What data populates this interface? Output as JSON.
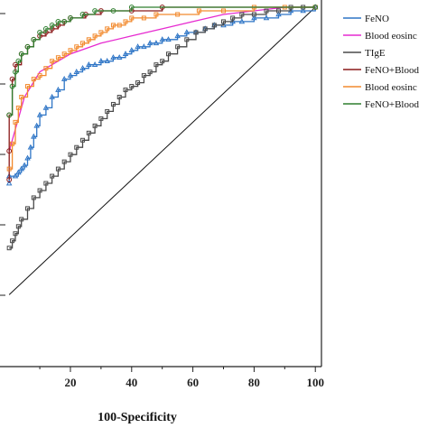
{
  "chart_data": {
    "type": "line",
    "xlabel": "100-Specificity",
    "ylabel": "",
    "xlim": [
      -3,
      102
    ],
    "ylim": [
      0,
      100
    ],
    "xticks": [
      20,
      40,
      60,
      80,
      100
    ],
    "tick_labels": [
      "20",
      "40",
      "60",
      "80",
      "100"
    ],
    "grid": false,
    "legend_position": "right",
    "series": [
      {
        "name": "FeNO",
        "color": "#2e75c6",
        "marker": "triangle",
        "points": [
          [
            0,
            51
          ],
          [
            0,
            53
          ],
          [
            2,
            53
          ],
          [
            3,
            54
          ],
          [
            4,
            55
          ],
          [
            5,
            56
          ],
          [
            6,
            58
          ],
          [
            7,
            61
          ],
          [
            8,
            64
          ],
          [
            9,
            67
          ],
          [
            10,
            70
          ],
          [
            12,
            72
          ],
          [
            14,
            75
          ],
          [
            16,
            77
          ],
          [
            18,
            80
          ],
          [
            20,
            81
          ],
          [
            22,
            82
          ],
          [
            24,
            83
          ],
          [
            26,
            84
          ],
          [
            28,
            84
          ],
          [
            30,
            85
          ],
          [
            32,
            85
          ],
          [
            34,
            86
          ],
          [
            36,
            86
          ],
          [
            38,
            87
          ],
          [
            40,
            88
          ],
          [
            42,
            89
          ],
          [
            44,
            89
          ],
          [
            46,
            90
          ],
          [
            48,
            90
          ],
          [
            50,
            91
          ],
          [
            52,
            91
          ],
          [
            55,
            92
          ],
          [
            58,
            93
          ],
          [
            61,
            93
          ],
          [
            64,
            94
          ],
          [
            67,
            95
          ],
          [
            70,
            95
          ],
          [
            73,
            96
          ],
          [
            76,
            96
          ],
          [
            80,
            97
          ],
          [
            84,
            97
          ],
          [
            88,
            98
          ],
          [
            92,
            99
          ],
          [
            96,
            99
          ],
          [
            100,
            100
          ]
        ]
      },
      {
        "name": "Blood eosinophil count",
        "color": "#e62ad0",
        "marker": "none",
        "points": [
          [
            0,
            60
          ],
          [
            5,
            75
          ],
          [
            10,
            82
          ],
          [
            20,
            87
          ],
          [
            30,
            90
          ],
          [
            40,
            92
          ],
          [
            50,
            94
          ],
          [
            60,
            96
          ],
          [
            70,
            98
          ],
          [
            80,
            99
          ],
          [
            90,
            100
          ],
          [
            100,
            100
          ]
        ]
      },
      {
        "name": "TIgE",
        "color": "#4a4a4a",
        "marker": "square",
        "points": [
          [
            0,
            33
          ],
          [
            1,
            35
          ],
          [
            2,
            37
          ],
          [
            3,
            39
          ],
          [
            4,
            41
          ],
          [
            6,
            44
          ],
          [
            8,
            47
          ],
          [
            10,
            49
          ],
          [
            12,
            51
          ],
          [
            14,
            53
          ],
          [
            16,
            55
          ],
          [
            18,
            57
          ],
          [
            20,
            59
          ],
          [
            22,
            61
          ],
          [
            24,
            63
          ],
          [
            26,
            65
          ],
          [
            28,
            67
          ],
          [
            30,
            69
          ],
          [
            32,
            71
          ],
          [
            34,
            73
          ],
          [
            36,
            75
          ],
          [
            38,
            77
          ],
          [
            40,
            78
          ],
          [
            42,
            79
          ],
          [
            44,
            81
          ],
          [
            46,
            82
          ],
          [
            48,
            84
          ],
          [
            50,
            85
          ],
          [
            52,
            87
          ],
          [
            55,
            89
          ],
          [
            58,
            91
          ],
          [
            61,
            93
          ],
          [
            64,
            94
          ],
          [
            67,
            95
          ],
          [
            70,
            96
          ],
          [
            73,
            97
          ],
          [
            76,
            98
          ],
          [
            80,
            98
          ],
          [
            84,
            99
          ],
          [
            88,
            99
          ],
          [
            92,
            100
          ],
          [
            96,
            100
          ],
          [
            100,
            100
          ]
        ]
      },
      {
        "name": "FeNO+Blood eosinophil count",
        "color": "#8b1a1a",
        "marker": "circle",
        "points": [
          [
            0,
            52
          ],
          [
            0,
            60
          ],
          [
            0,
            70
          ],
          [
            1,
            80
          ],
          [
            2,
            84
          ],
          [
            4,
            87
          ],
          [
            6,
            89
          ],
          [
            8,
            91
          ],
          [
            10,
            92
          ],
          [
            12,
            93
          ],
          [
            14,
            94
          ],
          [
            16,
            95
          ],
          [
            18,
            96
          ],
          [
            20,
            97
          ],
          [
            25,
            98
          ],
          [
            30,
            99
          ],
          [
            40,
            99
          ],
          [
            50,
            100
          ],
          [
            100,
            100
          ]
        ]
      },
      {
        "name": "Blood eosinophil count+TIgE",
        "color": "#f28a2e",
        "marker": "square",
        "points": [
          [
            0,
            55
          ],
          [
            1,
            62
          ],
          [
            2,
            68
          ],
          [
            3,
            72
          ],
          [
            4,
            75
          ],
          [
            6,
            78
          ],
          [
            8,
            80
          ],
          [
            10,
            81
          ],
          [
            12,
            83
          ],
          [
            14,
            85
          ],
          [
            16,
            86
          ],
          [
            18,
            87
          ],
          [
            20,
            88
          ],
          [
            22,
            89
          ],
          [
            24,
            90
          ],
          [
            26,
            91
          ],
          [
            28,
            92
          ],
          [
            30,
            93
          ],
          [
            32,
            94
          ],
          [
            34,
            95
          ],
          [
            36,
            95
          ],
          [
            38,
            96
          ],
          [
            40,
            97
          ],
          [
            44,
            97
          ],
          [
            48,
            98
          ],
          [
            55,
            98
          ],
          [
            62,
            99
          ],
          [
            70,
            99
          ],
          [
            80,
            100
          ],
          [
            90,
            100
          ],
          [
            100,
            100
          ]
        ]
      },
      {
        "name": "FeNO+Blood eosinophil count+TIgE",
        "color": "#2f7f2f",
        "marker": "circle",
        "points": [
          [
            0,
            70
          ],
          [
            1,
            78
          ],
          [
            2,
            82
          ],
          [
            3,
            85
          ],
          [
            4,
            87
          ],
          [
            6,
            89
          ],
          [
            8,
            91
          ],
          [
            10,
            93
          ],
          [
            12,
            94
          ],
          [
            14,
            95
          ],
          [
            16,
            96
          ],
          [
            18,
            96
          ],
          [
            20,
            97
          ],
          [
            24,
            98
          ],
          [
            28,
            99
          ],
          [
            34,
            99
          ],
          [
            40,
            100
          ],
          [
            100,
            100
          ]
        ]
      }
    ],
    "reference_line": {
      "name": "",
      "color": "#111111",
      "points": [
        [
          0,
          20
        ],
        [
          100,
          100
        ]
      ]
    }
  },
  "legend": {
    "items": [
      {
        "label": "FeNO",
        "color": "#2e75c6"
      },
      {
        "label": "Blood eosinc",
        "color": "#e62ad0"
      },
      {
        "label": "TIgE",
        "color": "#4a4a4a"
      },
      {
        "label": "FeNO+Blood",
        "color": "#8b1a1a"
      },
      {
        "label": "Blood eosinc",
        "color": "#f28a2e"
      },
      {
        "label": "FeNO+Blood",
        "color": "#2f7f2f"
      }
    ]
  }
}
